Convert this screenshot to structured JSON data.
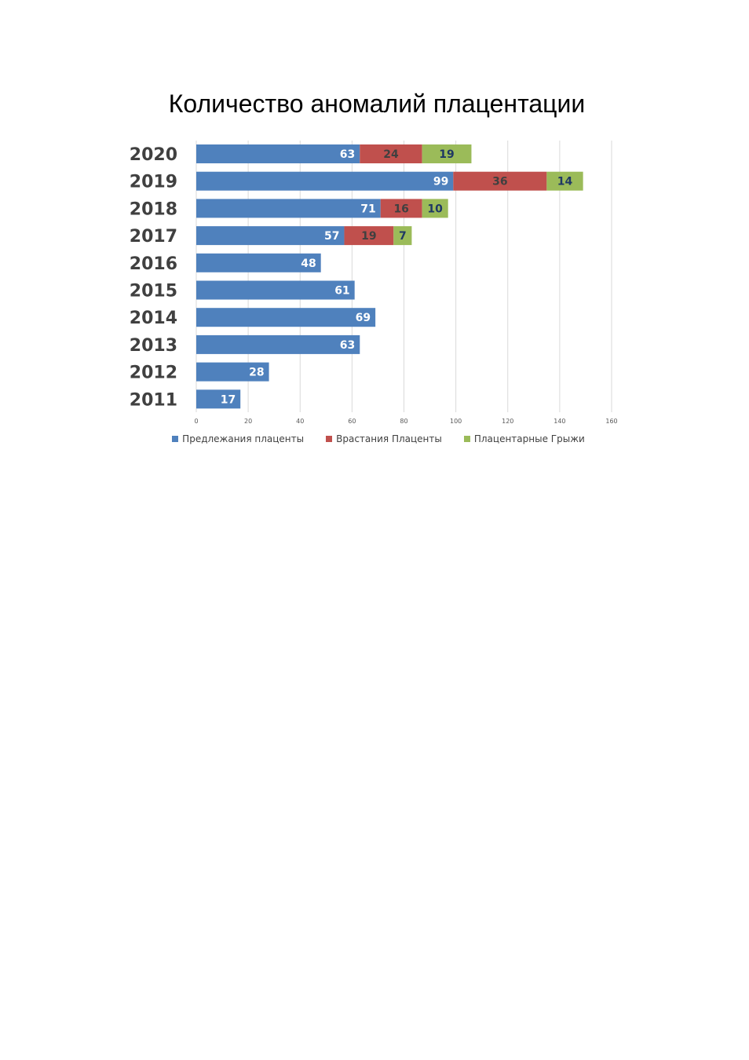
{
  "chart_data": {
    "type": "bar",
    "orientation": "horizontal",
    "stacked": true,
    "title": "Количество аномалий  плацентации",
    "categories": [
      "2020",
      "2019",
      "2018",
      "2017",
      "2016",
      "2015",
      "2014",
      "2013",
      "2012",
      "2011"
    ],
    "series": [
      {
        "name": "Предлежания плаценты",
        "color": "#4f81bd",
        "label_color": "#ffffff",
        "values": [
          63,
          99,
          71,
          57,
          48,
          61,
          69,
          63,
          28,
          17
        ]
      },
      {
        "name": "Врастания Плаценты",
        "color": "#c0504d",
        "label_color": "#404040",
        "values": [
          24,
          36,
          16,
          19,
          null,
          null,
          null,
          null,
          null,
          null
        ]
      },
      {
        "name": "Плацентарные Грыжи",
        "color": "#9bbb59",
        "label_color": "#1f3864",
        "values": [
          19,
          14,
          10,
          7,
          null,
          null,
          null,
          null,
          null,
          null
        ]
      }
    ],
    "xlim": [
      0,
      160
    ],
    "xticks": [
      "0",
      "20",
      "40",
      "60",
      "80",
      "100",
      "120",
      "140",
      "160"
    ],
    "grid": true,
    "legend": "bottom"
  }
}
